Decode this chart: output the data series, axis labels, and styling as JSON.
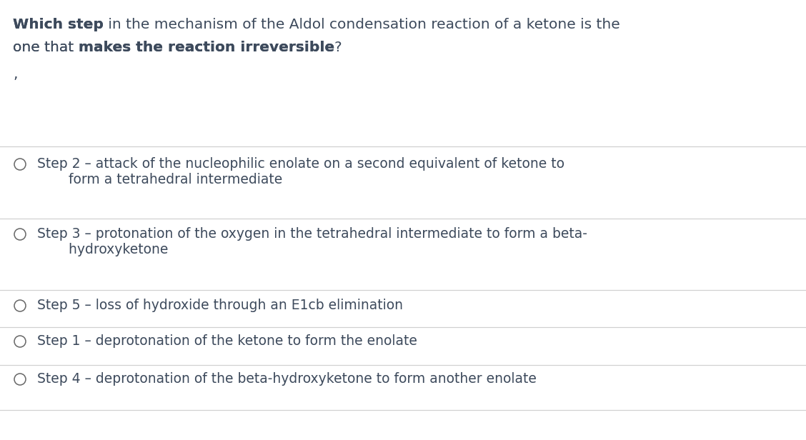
{
  "background_color": "#ffffff",
  "text_color": "#3d4a5c",
  "line_color": "#d0d0d0",
  "circle_color": "#666666",
  "font_size_title": 14.5,
  "font_size_options": 13.5,
  "title_line1_bold": "Which step",
  "title_line1_normal": " in the mechanism of the Aldol condensation reaction of a ketone is the",
  "title_line2_normal": "one that ",
  "title_line2_bold": "makes the reaction irreversible",
  "title_line2_end": "?",
  "comma": ",",
  "options": [
    {
      "line1": "Step 2 – attack of the nucleophilic enolate on a second equivalent of ketone to",
      "line2": "    form a tetrahedral intermediate"
    },
    {
      "line1": "Step 3 – protonation of the oxygen in the tetrahedral intermediate to form a beta-",
      "line2": "    hydroxyketone"
    },
    {
      "line1": "Step 5 – loss of hydroxide through an E1cb elimination",
      "line2": null
    },
    {
      "line1": "Step 1 – deprotonation of the ketone to form the enolate",
      "line2": null
    },
    {
      "line1": "Step 4 – deprotonation of the beta-hydroxyketone to form another enolate",
      "line2": null
    }
  ]
}
